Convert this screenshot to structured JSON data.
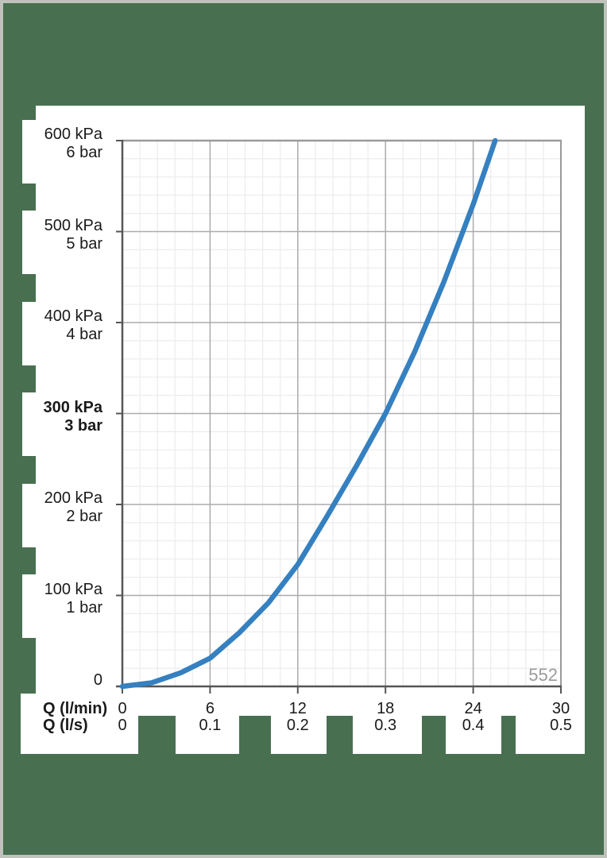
{
  "page": {
    "kind": "pressure-drop-diagram"
  },
  "colors": {
    "background_green": "#487050",
    "page_border_gray": "#bfc3bc",
    "panel_white": "#ffffff",
    "curve_blue": "#3580c0",
    "grid_minor": "#ececec",
    "grid_major": "#ababab",
    "frame_light": "#9a9a9a",
    "axis_dark": "#565656",
    "annotation_gray": "#9b9b9b"
  },
  "chart_data": {
    "type": "line",
    "title": "",
    "x_axis": {
      "label_lmin": "Q (l/min)",
      "label_ls": "Q (l/s)",
      "xlim": [
        0,
        30
      ],
      "major_step": 6,
      "minor_step": 1.2,
      "ticks_lmin": [
        "0",
        "6",
        "12",
        "18",
        "24",
        "30"
      ],
      "ticks_ls": [
        "0",
        "0.1",
        "0.2",
        "0.3",
        "0.4",
        "0.5"
      ],
      "tick_values": [
        0,
        6,
        12,
        18,
        24,
        30
      ]
    },
    "y_axis": {
      "unit_primary": "kPa",
      "unit_secondary": "bar",
      "ylim": [
        0,
        600
      ],
      "major_step": 100,
      "minor_step": 20,
      "labels": [
        {
          "value": 600,
          "kpa": "600 kPa",
          "bar": "6 bar",
          "bold": false
        },
        {
          "value": 500,
          "kpa": "500 kPa",
          "bar": "5 bar",
          "bold": false
        },
        {
          "value": 400,
          "kpa": "400 kPa",
          "bar": "4 bar",
          "bold": false
        },
        {
          "value": 300,
          "kpa": "300 kPa",
          "bar": "3 bar",
          "bold": true
        },
        {
          "value": 200,
          "kpa": "200 kPa",
          "bar": "2 bar",
          "bold": false
        },
        {
          "value": 100,
          "kpa": "100 kPa",
          "bar": "1 bar",
          "bold": false
        },
        {
          "value": 0,
          "kpa": "0",
          "bar": "",
          "bold": false
        }
      ]
    },
    "grid": "minor+major",
    "legend": "none",
    "series": [
      {
        "name": "pressure-drop-curve",
        "color": "#3580c0",
        "points_q_lmin_vs_p_kpa": [
          [
            0,
            0
          ],
          [
            2,
            4
          ],
          [
            4,
            15
          ],
          [
            6,
            31
          ],
          [
            8,
            59
          ],
          [
            10,
            92
          ],
          [
            12,
            134
          ],
          [
            14,
            187
          ],
          [
            16,
            242
          ],
          [
            18,
            300
          ],
          [
            20,
            368
          ],
          [
            22,
            445
          ],
          [
            24,
            530
          ],
          [
            25.5,
            600
          ]
        ]
      }
    ],
    "annotation": "552"
  }
}
